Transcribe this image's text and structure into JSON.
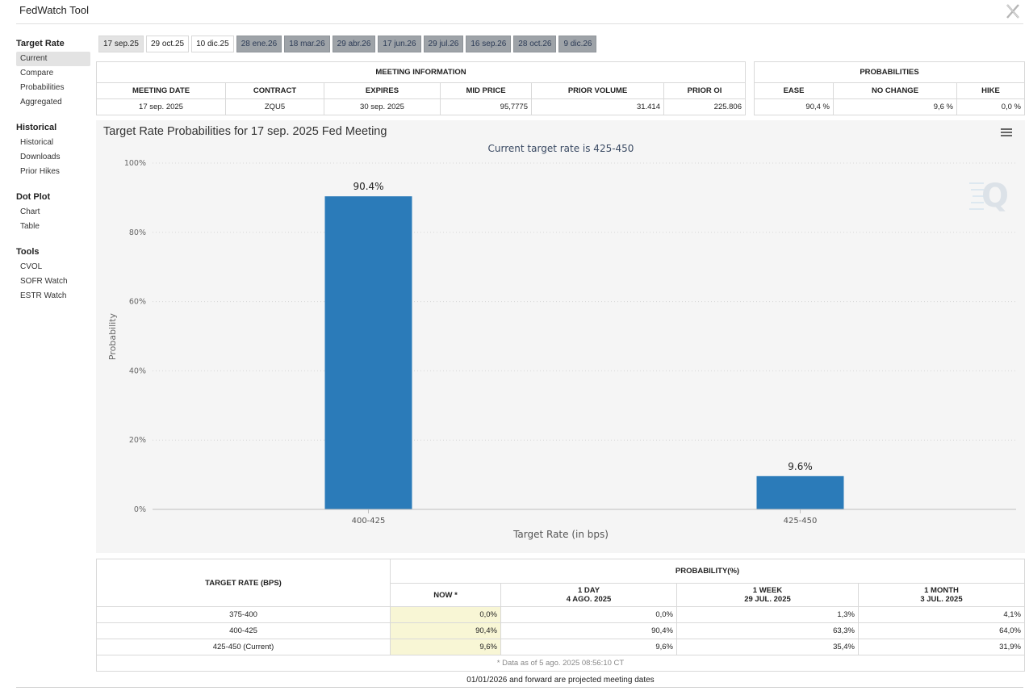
{
  "app": {
    "title": "FedWatch Tool"
  },
  "sidebar": {
    "groups": [
      {
        "title": "Target Rate",
        "items": [
          "Current",
          "Compare",
          "Probabilities",
          "Aggregated"
        ]
      },
      {
        "title": "Historical",
        "items": [
          "Historical",
          "Downloads",
          "Prior Hikes"
        ]
      },
      {
        "title": "Dot Plot",
        "items": [
          "Chart",
          "Table"
        ]
      },
      {
        "title": "Tools",
        "items": [
          "CVOL",
          "SOFR Watch",
          "ESTR Watch"
        ]
      }
    ]
  },
  "tabs": [
    "17 sep.25",
    "29 oct.25",
    "10 dic.25",
    "28 ene.26",
    "18 mar.26",
    "29 abr.26",
    "17 jun.26",
    "29 jul.26",
    "16 sep.26",
    "28 oct.26",
    "9 dic.26"
  ],
  "meeting_info": {
    "header": "MEETING INFORMATION",
    "columns": [
      "MEETING DATE",
      "CONTRACT",
      "EXPIRES",
      "MID PRICE",
      "PRIOR VOLUME",
      "PRIOR OI"
    ],
    "row": [
      "17 sep. 2025",
      "ZQU5",
      "30 sep. 2025",
      "95,7775",
      "31.414",
      "225.806"
    ]
  },
  "probabilities": {
    "header": "PROBABILITIES",
    "columns": [
      "EASE",
      "NO CHANGE",
      "HIKE"
    ],
    "row": [
      "90,4 %",
      "9,6 %",
      "0,0 %"
    ]
  },
  "chart_data": {
    "type": "bar",
    "title": "Target Rate Probabilities for 17 sep. 2025 Fed Meeting",
    "subtitle": "Current target rate is 425-450",
    "categories": [
      "400-425",
      "425-450"
    ],
    "values": [
      90.4,
      9.6
    ],
    "data_labels": [
      "90.4%",
      "9.6%"
    ],
    "xlabel": "Target Rate (in bps)",
    "ylabel": "Probability",
    "ylim": [
      0,
      100
    ],
    "yticks": [
      "0%",
      "20%",
      "40%",
      "60%",
      "80%",
      "100%"
    ],
    "grid": true,
    "bar_color": "#2b7bb9"
  },
  "distribution": {
    "target_header": "TARGET RATE (BPS)",
    "prob_header": "PROBABILITY(%)",
    "columns": [
      {
        "line1": "NOW *",
        "line2": ""
      },
      {
        "line1": "1 DAY",
        "line2": "4 AGO. 2025"
      },
      {
        "line1": "1 WEEK",
        "line2": "29 JUL. 2025"
      },
      {
        "line1": "1 MONTH",
        "line2": "3 JUL. 2025"
      }
    ],
    "rows": [
      {
        "rate": "375-400",
        "values": [
          "0,0%",
          "0,0%",
          "1,3%",
          "4,1%"
        ]
      },
      {
        "rate": "400-425",
        "values": [
          "90,4%",
          "90,4%",
          "63,3%",
          "64,0%"
        ]
      },
      {
        "rate": "425-450 (Current)",
        "values": [
          "9,6%",
          "9,6%",
          "35,4%",
          "31,9%"
        ]
      }
    ],
    "footnote": "* Data as of 5 ago. 2025 08:56:10 CT"
  },
  "projection_note": "01/01/2026 and forward are projected meeting dates"
}
